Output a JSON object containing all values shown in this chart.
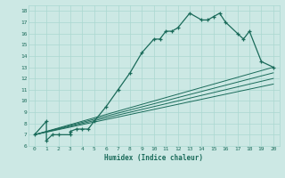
{
  "xlabel": "Humidex (Indice chaleur)",
  "bg_color": "#cce8e4",
  "line_color": "#1a6b5a",
  "grid_color": "#aad8d0",
  "xlim": [
    -0.5,
    20.5
  ],
  "ylim": [
    6,
    18.5
  ],
  "yticks": [
    6,
    7,
    8,
    9,
    10,
    11,
    12,
    13,
    14,
    15,
    16,
    17,
    18
  ],
  "xticks": [
    0,
    1,
    2,
    3,
    4,
    5,
    6,
    7,
    8,
    9,
    10,
    11,
    12,
    13,
    14,
    15,
    16,
    17,
    18,
    19,
    20
  ],
  "main_x": [
    0,
    1,
    1,
    1.5,
    2,
    3,
    3,
    3.5,
    4,
    4.5,
    5,
    6,
    7,
    8,
    9,
    10,
    10.5,
    11,
    11.5,
    12,
    13,
    14,
    14.5,
    15,
    15.5,
    16,
    17,
    17.5,
    18,
    19,
    20
  ],
  "main_y": [
    7,
    8.2,
    6.5,
    7,
    7,
    7,
    7.3,
    7.5,
    7.5,
    7.5,
    8.2,
    9.5,
    11,
    12.5,
    14.3,
    15.5,
    15.5,
    16.2,
    16.2,
    16.5,
    17.8,
    17.2,
    17.2,
    17.5,
    17.8,
    17.0,
    16.0,
    15.5,
    16.2,
    13.5,
    13.0
  ],
  "ref_lines": [
    {
      "x": [
        0,
        20
      ],
      "y": [
        7.0,
        13.0
      ]
    },
    {
      "x": [
        0,
        20
      ],
      "y": [
        7.0,
        12.5
      ]
    },
    {
      "x": [
        0,
        20
      ],
      "y": [
        7.0,
        12.0
      ]
    },
    {
      "x": [
        0,
        20
      ],
      "y": [
        7.0,
        11.5
      ]
    }
  ]
}
